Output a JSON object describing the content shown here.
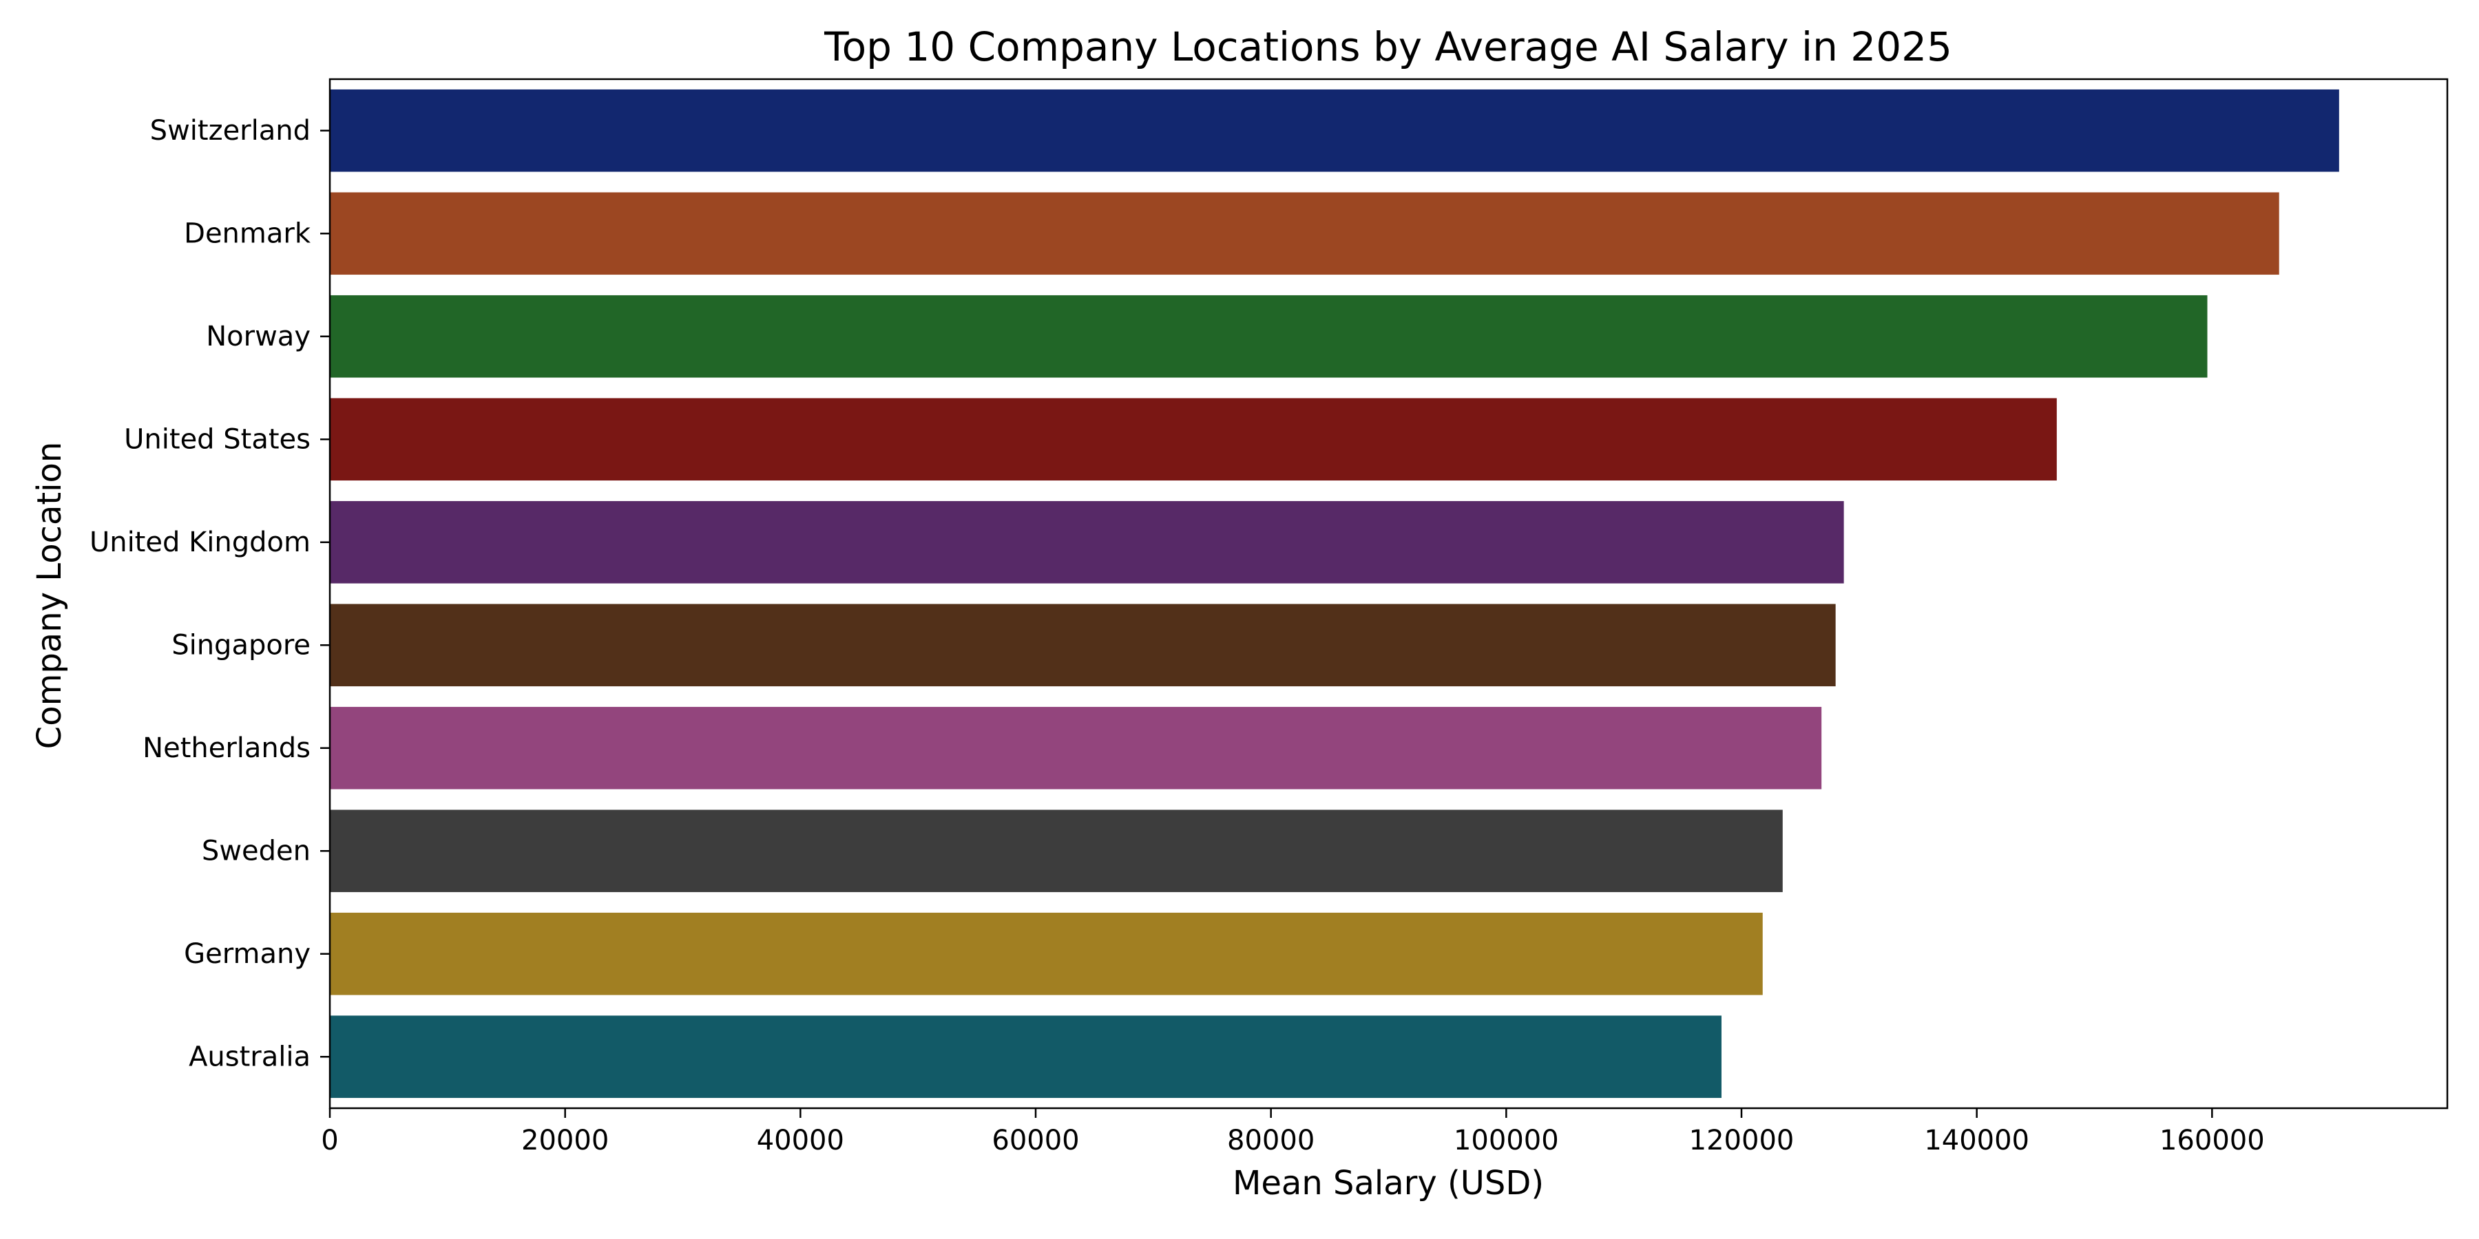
{
  "chart_data": {
    "type": "bar",
    "orientation": "horizontal",
    "title": "Top 10 Company Locations by Average AI Salary in 2025",
    "xlabel": "Mean Salary (USD)",
    "ylabel": "Company Location",
    "xlim": [
      0,
      180000
    ],
    "xticks": [
      0,
      20000,
      40000,
      60000,
      80000,
      100000,
      120000,
      140000,
      160000
    ],
    "grid": false,
    "legend": "none",
    "categories": [
      "Switzerland",
      "Denmark",
      "Norway",
      "United States",
      "United Kingdom",
      "Singapore",
      "Netherlands",
      "Sweden",
      "Germany",
      "Australia"
    ],
    "values": [
      170800,
      165700,
      159600,
      146800,
      128700,
      128000,
      126800,
      123500,
      121800,
      118300
    ],
    "colors": [
      "#12276f",
      "#9c4722",
      "#216627",
      "#7a1714",
      "#572967",
      "#523019",
      "#93457d",
      "#3d3d3d",
      "#a17f22",
      "#125a67"
    ]
  }
}
